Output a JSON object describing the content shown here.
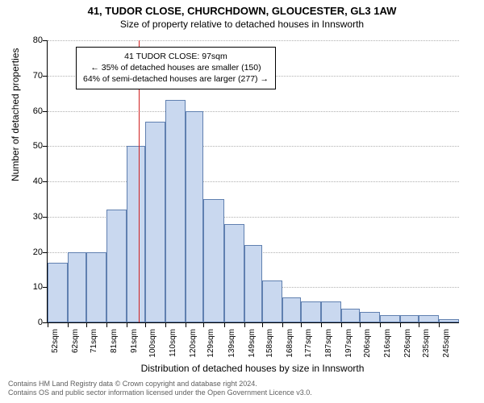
{
  "title_main": "41, TUDOR CLOSE, CHURCHDOWN, GLOUCESTER, GL3 1AW",
  "title_sub": "Size of property relative to detached houses in Innsworth",
  "ylabel": "Number of detached properties",
  "xlabel": "Distribution of detached houses by size in Innsworth",
  "footer1": "Contains HM Land Registry data © Crown copyright and database right 2024.",
  "footer2": "Contains OS and public sector information licensed under the Open Government Licence v3.0.",
  "annotation": {
    "line1": "41 TUDOR CLOSE: 97sqm",
    "line2": "← 35% of detached houses are smaller (150)",
    "line3": "64% of semi-detached houses are larger (277) →"
  },
  "chart": {
    "type": "histogram",
    "ylim": [
      0,
      80
    ],
    "ytick_step": 10,
    "bar_fill": "#c9d8ef",
    "bar_stroke": "#6080b0",
    "grid_color": "#b0b0b0",
    "refline_color": "#d02020",
    "refline_x": 97,
    "categories": [
      "52sqm",
      "62sqm",
      "71sqm",
      "81sqm",
      "91sqm",
      "100sqm",
      "110sqm",
      "120sqm",
      "129sqm",
      "139sqm",
      "149sqm",
      "158sqm",
      "168sqm",
      "177sqm",
      "187sqm",
      "197sqm",
      "206sqm",
      "216sqm",
      "226sqm",
      "235sqm",
      "245sqm"
    ],
    "x_edges": [
      52,
      62,
      71,
      81,
      91,
      100,
      110,
      120,
      129,
      139,
      149,
      158,
      168,
      177,
      187,
      197,
      206,
      216,
      226,
      235,
      245,
      255
    ],
    "values": [
      17,
      20,
      20,
      32,
      50,
      57,
      63,
      60,
      35,
      28,
      22,
      12,
      7,
      6,
      6,
      4,
      3,
      2,
      2,
      2,
      1
    ]
  }
}
